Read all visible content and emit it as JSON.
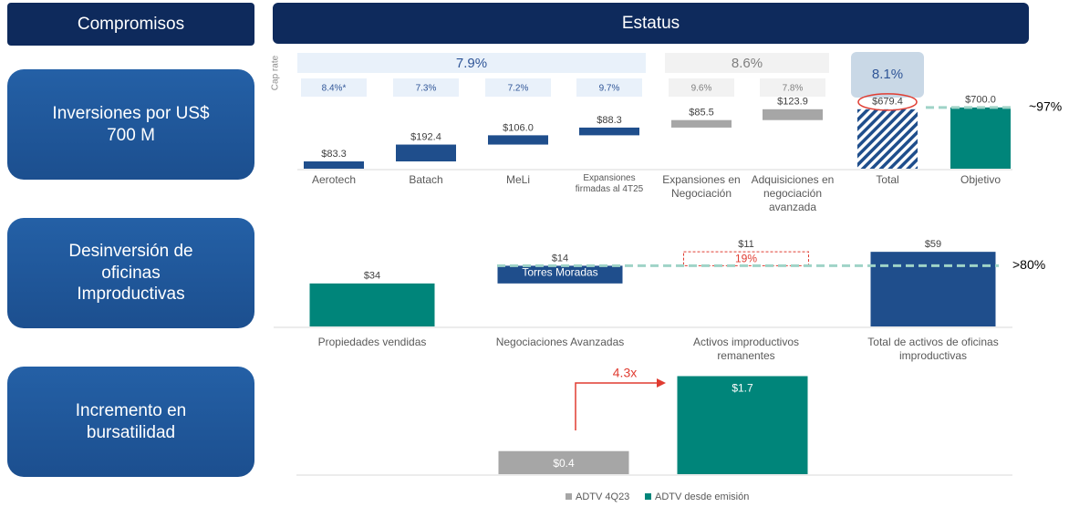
{
  "header": {
    "left": "Compromisos",
    "right": "Estatus"
  },
  "rows": [
    "Inversiones por US$ 700 M",
    "Desinversión de oficinas Improductivas",
    "Incremento en bursatilidad"
  ],
  "chart_data": [
    {
      "type": "waterfall",
      "categories": [
        "Aerotech",
        "Batach",
        "MeLi",
        "Expansiones firmadas al 4T25",
        "Expansiones en Negociación",
        "Adquisiciones en negociación avanzada",
        "Total",
        "Objetivo"
      ],
      "values": [
        83.3,
        192.4,
        106.0,
        88.3,
        85.5,
        123.9,
        679.4,
        700.0
      ],
      "value_labels": [
        "$83.3",
        "$192.4",
        "$106.0",
        "$88.3",
        "$85.5",
        "$123.9",
        "$679.4",
        "$700.0"
      ],
      "measure": [
        "relative",
        "relative",
        "relative",
        "relative",
        "relative",
        "relative",
        "total",
        "total"
      ],
      "colors": [
        "#1f4e8c",
        "#1f4e8c",
        "#1f4e8c",
        "#1f4e8c",
        "#a6a6a6",
        "#a6a6a6",
        "#1f4e8c",
        "#00857a"
      ],
      "fill_styles": [
        "solid",
        "solid",
        "solid",
        "solid",
        "solid",
        "solid",
        "hatched",
        "solid"
      ],
      "cap_rate_title": "Cap rate",
      "cap_rate_group_labels": [
        "7.9%",
        "8.6%",
        "8.1%"
      ],
      "cap_rate_labels": [
        "8.4%*",
        "7.3%",
        "7.2%",
        "9.7%",
        "9.6%",
        "7.8%"
      ],
      "reference_line": {
        "label": "~97%",
        "color": "#9fd3c7"
      },
      "ylim": [
        0,
        740
      ]
    },
    {
      "type": "waterfall",
      "categories": [
        "Propiedades vendidas",
        "Negociaciones Avanzadas",
        "Activos improductivos remanentes",
        "Total de activos de oficinas improductivas"
      ],
      "values": [
        34,
        14,
        11,
        59
      ],
      "value_labels": [
        "$34",
        "$14",
        "$11",
        "$59"
      ],
      "measure": [
        "relative",
        "relative",
        "relative",
        "total"
      ],
      "colors": [
        "#00857a",
        "#1f4e8c",
        "#e03c31",
        "#1f4e8c"
      ],
      "fill_styles": [
        "solid",
        "solid",
        "dashed-outline",
        "solid"
      ],
      "inner_labels": [
        null,
        "Torres Moradas",
        "19%",
        null
      ],
      "reference_line": {
        "label": ">80%",
        "color": "#9fd3c7"
      },
      "ylim": [
        0,
        62
      ]
    },
    {
      "type": "bar",
      "series": [
        {
          "name": "ADTV 4Q23",
          "color": "#a6a6a6",
          "values": [
            0.4
          ],
          "value_labels": [
            "$0.4"
          ]
        },
        {
          "name": "ADTV desde emisión",
          "color": "#00857a",
          "values": [
            1.7
          ],
          "value_labels": [
            "$1.7"
          ]
        }
      ],
      "annotation": "4.3x",
      "legend": "bottom",
      "ylim": [
        0,
        1.85
      ]
    }
  ]
}
